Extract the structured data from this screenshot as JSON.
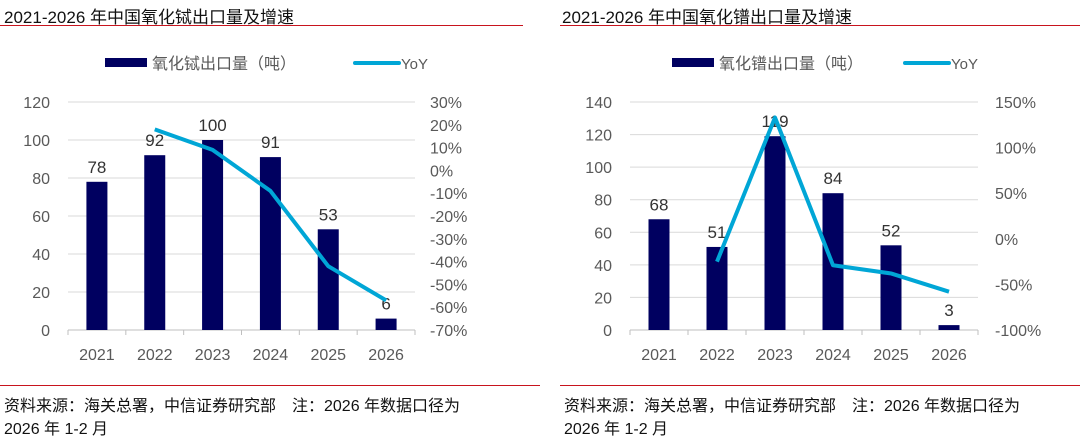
{
  "colors": {
    "bar": "#000060",
    "line": "#00A6D6",
    "grid": "#d9d9d9",
    "accent_rule": "#c8141e",
    "axis_text": "#595959"
  },
  "chart_data": [
    {
      "type": "bar+line",
      "title": "2021-2026 年中国氧化铽出口量及增速",
      "categories": [
        "2021",
        "2022",
        "2023",
        "2024",
        "2025",
        "2026"
      ],
      "series": [
        {
          "name": "氧化铽出口量（吨）",
          "type": "bar",
          "axis": "left",
          "values": [
            78,
            92,
            100,
            91,
            53,
            6
          ],
          "labels": [
            "78",
            "92",
            "100",
            "91",
            "53",
            "6"
          ]
        },
        {
          "name": "YoY",
          "type": "line",
          "axis": "right",
          "values": [
            null,
            18,
            9,
            -9,
            -42,
            -57
          ]
        }
      ],
      "y_left": {
        "range": [
          0,
          120
        ],
        "ticks": [
          "0",
          "20",
          "40",
          "60",
          "80",
          "100",
          "120"
        ]
      },
      "y_right": {
        "range": [
          -70,
          30
        ],
        "ticks": [
          "-70%",
          "-60%",
          "-50%",
          "-40%",
          "-30%",
          "-20%",
          "-10%",
          "0%",
          "10%",
          "20%",
          "30%"
        ]
      },
      "grid": true,
      "legend": "top"
    },
    {
      "type": "bar+line",
      "title": "2021-2026 年中国氧化镨出口量及增速",
      "categories": [
        "2021",
        "2022",
        "2023",
        "2024",
        "2025",
        "2026"
      ],
      "series": [
        {
          "name": "氧化镨出口量（吨）",
          "type": "bar",
          "axis": "left",
          "values": [
            68,
            51,
            119,
            84,
            52,
            3
          ],
          "labels": [
            "68",
            "51",
            "119",
            "84",
            "52",
            "3"
          ]
        },
        {
          "name": "YoY",
          "type": "line",
          "axis": "right",
          "values": [
            null,
            -25,
            133,
            -29,
            -38,
            -58
          ]
        }
      ],
      "y_left": {
        "range": [
          0,
          140
        ],
        "ticks": [
          "0",
          "20",
          "40",
          "60",
          "80",
          "100",
          "120",
          "140"
        ]
      },
      "y_right": {
        "range": [
          -100,
          150
        ],
        "ticks": [
          "-100%",
          "-50%",
          "0%",
          "50%",
          "100%",
          "150%"
        ]
      },
      "grid": true,
      "legend": "top"
    }
  ],
  "source": {
    "line1": "资料来源：海关总署，中信证券研究部　注：2026 年数据口径为",
    "line2": "2026 年 1-2 月"
  }
}
